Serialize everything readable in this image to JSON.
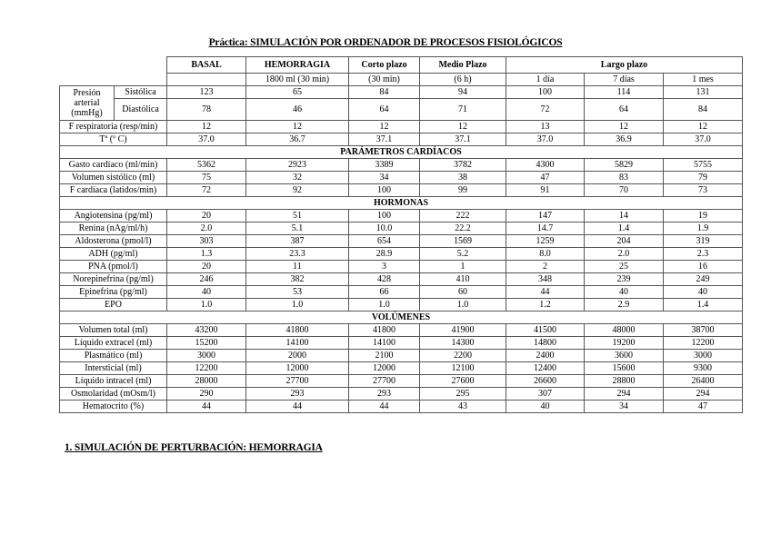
{
  "title": "Práctica: SIMULACIÓN POR ORDENADOR DE PROCESOS FISIOLÓGICOS",
  "header": {
    "columns": [
      "BASAL",
      "HEMORRAGIA",
      "Corto plazo",
      "Medio Plazo",
      "Largo plazo"
    ],
    "subcolumns": [
      "",
      "1800 ml (30 min)",
      "(30 min)",
      "(6 h)",
      "1 día",
      "7 días",
      "1 mes"
    ]
  },
  "pressure": {
    "label": "Presión arterial (mmHg)",
    "rows": [
      {
        "label": "Sistólica",
        "values": [
          "123",
          "65",
          "84",
          "94",
          "100",
          "114",
          "131"
        ]
      },
      {
        "label": "Diastólica",
        "values": [
          "78",
          "46",
          "64",
          "71",
          "72",
          "64",
          "84"
        ]
      }
    ]
  },
  "general_rows": [
    {
      "label": "F respiratoria (resp/min)",
      "values": [
        "12",
        "12",
        "12",
        "12",
        "13",
        "12",
        "12"
      ]
    },
    {
      "label": "Tª (º C)",
      "values": [
        "37.0",
        "36.7",
        "37.1",
        "37.1",
        "37.0",
        "36.9",
        "37.0"
      ]
    }
  ],
  "sections": [
    {
      "title": "PARÁMETROS CARDÍACOS",
      "rows": [
        {
          "label": "Gasto cardíaco (ml/min)",
          "values": [
            "5362",
            "2923",
            "3389",
            "3782",
            "4300",
            "5829",
            "5755"
          ]
        },
        {
          "label": "Volumen sistólico (ml)",
          "values": [
            "75",
            "32",
            "34",
            "38",
            "47",
            "83",
            "79"
          ]
        },
        {
          "label": "F cardíaca (latidos/min)",
          "values": [
            "72",
            "92",
            "100",
            "99",
            "91",
            "70",
            "73"
          ]
        }
      ]
    },
    {
      "title": "HORMONAS",
      "rows": [
        {
          "label": "Angiotensina (pg/ml)",
          "values": [
            "20",
            "51",
            "100",
            "222",
            "147",
            "14",
            "19"
          ]
        },
        {
          "label": "Renina (nAg/ml/h)",
          "values": [
            "2.0",
            "5.1",
            "10.0",
            "22.2",
            "14.7",
            "1.4",
            "1.9"
          ]
        },
        {
          "label": "Aldosterona (pmol/l)",
          "values": [
            "303",
            "387",
            "654",
            "1569",
            "1259",
            "204",
            "319"
          ]
        },
        {
          "label": "ADH (pg/ml)",
          "values": [
            "1.3",
            "23.3",
            "28.9",
            "5.2",
            "8.0",
            "2.0",
            "2.3"
          ]
        },
        {
          "label": "PNA (pmol/l)",
          "values": [
            "20",
            "11",
            "3",
            "1",
            "2",
            "25",
            "16"
          ]
        },
        {
          "label": "Norepinefrina (pg/ml)",
          "values": [
            "246",
            "382",
            "428",
            "410",
            "348",
            "239",
            "249"
          ]
        },
        {
          "label": "Epinefrina (pg/ml)",
          "values": [
            "40",
            "53",
            "66",
            "60",
            "44",
            "40",
            "40"
          ]
        },
        {
          "label": "EPO",
          "values": [
            "1.0",
            "1.0",
            "1.0",
            "1.0",
            "1.2",
            "2.9",
            "1.4"
          ]
        }
      ]
    },
    {
      "title": "VOLÚMENES",
      "rows": [
        {
          "label": "Volumen total (ml)",
          "values": [
            "43200",
            "41800",
            "41800",
            "41900",
            "41500",
            "48000",
            "38700"
          ]
        },
        {
          "label": "Líquido extracel (ml)",
          "values": [
            "15200",
            "14100",
            "14100",
            "14300",
            "14800",
            "19200",
            "12200"
          ]
        },
        {
          "label": "Plasmático (ml)",
          "values": [
            "3000",
            "2000",
            "2100",
            "2200",
            "2400",
            "3600",
            "3000"
          ]
        },
        {
          "label": "Intersticial (ml)",
          "values": [
            "12200",
            "12000",
            "12000",
            "12100",
            "12400",
            "15600",
            "9300"
          ]
        },
        {
          "label": "Líquido intracel (ml)",
          "values": [
            "28000",
            "27700",
            "27700",
            "27600",
            "26600",
            "28800",
            "26400"
          ]
        },
        {
          "label": "Osmolaridad (mOsm/l)",
          "values": [
            "290",
            "293",
            "293",
            "295",
            "307",
            "294",
            "294"
          ]
        },
        {
          "label": "Hematocrito (%)",
          "values": [
            "44",
            "44",
            "44",
            "43",
            "40",
            "34",
            "47"
          ]
        }
      ]
    }
  ],
  "section_heading": "1. SIMULACIÓN DE PERTURBACIÓN: HEMORRAGIA"
}
